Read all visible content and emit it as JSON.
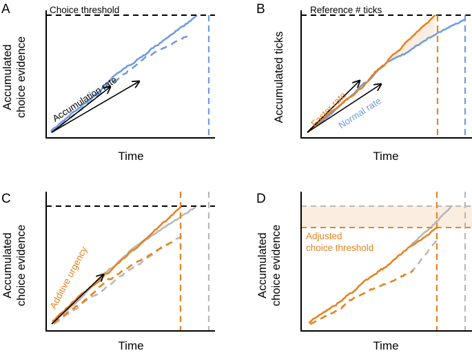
{
  "colors": {
    "black": "#000000",
    "blue": "#6f9be0",
    "orange": "#e8821e",
    "gray": "#b8b8b8",
    "shade": "#fbeee0"
  },
  "panels": [
    {
      "id": "A",
      "ylabel_line1": "Accumulated",
      "ylabel_line2": "choice evidence",
      "xlabel": "Time",
      "annotations": {
        "threshold": "Choice threshold",
        "rate": "Accumulation rate"
      }
    },
    {
      "id": "B",
      "ylabel_line1": "Accumulated ticks",
      "ylabel_line2": "",
      "xlabel": "Time",
      "annotations": {
        "threshold": "Reference # ticks",
        "fast": "Faster rate",
        "normal": "Normal rate"
      }
    },
    {
      "id": "C",
      "ylabel_line1": "Accumulated",
      "ylabel_line2": "choice evidence",
      "xlabel": "Time",
      "annotations": {
        "urgency": "Additive urgency"
      }
    },
    {
      "id": "D",
      "ylabel_line1": "Accumulated",
      "ylabel_line2": "choice evidence",
      "xlabel": "Time",
      "annotations": {
        "adjusted_line1": "Adjusted",
        "adjusted_line2": "choice threshold"
      }
    }
  ]
}
